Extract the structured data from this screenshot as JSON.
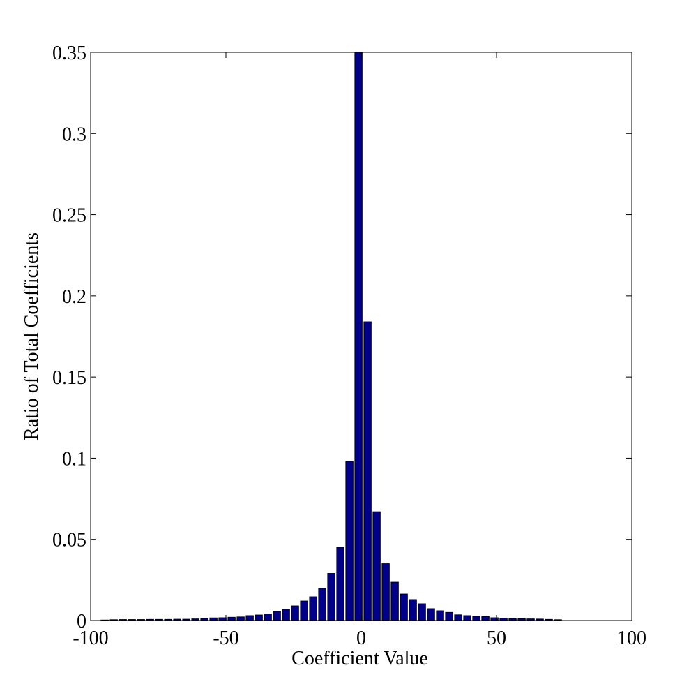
{
  "chart_data": {
    "type": "bar",
    "xlabel": "Coefficient Value",
    "ylabel": "Ratio of Total Coefficients",
    "x": [
      -94.8,
      -91.45,
      -88.1,
      -84.75,
      -81.4,
      -78.05,
      -74.7,
      -71.35,
      -68.0,
      -64.65,
      -61.3,
      -57.95,
      -54.6,
      -51.25,
      -47.9,
      -44.55,
      -41.2,
      -37.85,
      -34.5,
      -31.15,
      -27.8,
      -24.45,
      -21.1,
      -17.75,
      -14.4,
      -11.05,
      -7.7,
      -4.35,
      -1.0,
      2.35,
      5.7,
      9.05,
      12.4,
      15.75,
      19.1,
      22.45,
      25.8,
      29.15,
      32.5,
      35.85,
      39.2,
      42.55,
      45.9,
      49.25,
      52.6,
      55.95,
      59.3,
      62.65,
      66.0,
      69.35,
      72.7
    ],
    "values": [
      0.0003,
      0.0005,
      0.0006,
      0.0006,
      0.0006,
      0.0007,
      0.0007,
      0.0007,
      0.0008,
      0.0008,
      0.001,
      0.0013,
      0.0016,
      0.0017,
      0.002,
      0.0022,
      0.003,
      0.0034,
      0.004,
      0.0056,
      0.0069,
      0.009,
      0.012,
      0.0146,
      0.0198,
      0.029,
      0.045,
      0.098,
      0.35,
      0.184,
      0.067,
      0.035,
      0.0236,
      0.0163,
      0.0129,
      0.0103,
      0.0073,
      0.006,
      0.005,
      0.0035,
      0.003,
      0.0026,
      0.0024,
      0.0017,
      0.0015,
      0.0012,
      0.0011,
      0.001,
      0.0009,
      0.0007,
      0.0005
    ],
    "color": "#00008b",
    "xlim": [
      -100,
      100
    ],
    "xticks": [
      -100,
      -50,
      0,
      50,
      100
    ],
    "ylim": [
      0,
      0.35
    ],
    "yticks": [
      0,
      0.05,
      0.1,
      0.15,
      0.2,
      0.25,
      0.3,
      0.35
    ],
    "grid": false
  }
}
